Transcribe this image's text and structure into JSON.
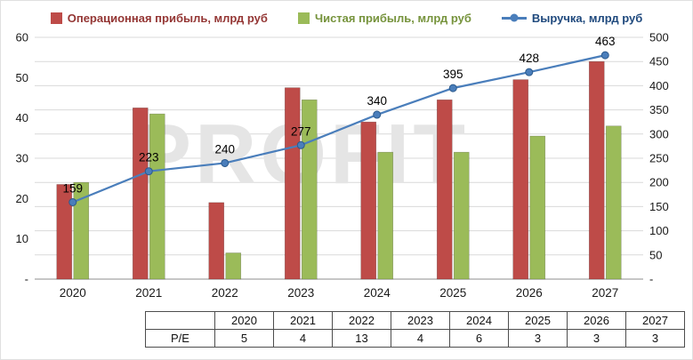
{
  "legend": {
    "items": [
      {
        "label": "Операционная прибыль, млрд руб",
        "color": "#BE4B48",
        "text_color": "#943634",
        "marker": "square"
      },
      {
        "label": "Чистая прибыль, млрд руб",
        "color": "#9BBB59",
        "text_color": "#76933C",
        "marker": "square"
      },
      {
        "label": "Выручка, млрд руб",
        "color": "#4A7EBB",
        "text_color": "#1F497D",
        "marker": "line-dot"
      }
    ]
  },
  "chart_data": {
    "type": "bar+line",
    "categories": [
      "2020",
      "2021",
      "2022",
      "2023",
      "2024",
      "2025",
      "2026",
      "2027"
    ],
    "series": [
      {
        "name": "Операционная прибыль, млрд руб",
        "type": "bar",
        "axis": "left",
        "color": "#BE4B48",
        "values": [
          23.5,
          42.5,
          19,
          47.5,
          39,
          44.5,
          49.5,
          54
        ]
      },
      {
        "name": "Чистая прибыль, млрд руб",
        "type": "bar",
        "axis": "left",
        "color": "#9BBB59",
        "values": [
          24,
          41,
          6.5,
          44.5,
          31.5,
          31.5,
          35.5,
          38
        ]
      },
      {
        "name": "Выручка, млрд руб",
        "type": "line",
        "axis": "right",
        "color": "#4A7EBB",
        "values": [
          159,
          223,
          240,
          277,
          340,
          395,
          428,
          463
        ],
        "point_labels": [
          "159",
          "223",
          "240",
          "277",
          "340",
          "395",
          "428",
          "463"
        ]
      }
    ],
    "left_axis": {
      "min": 0,
      "max": 60,
      "step": 10,
      "tick_labels": [
        "-",
        "10",
        "20",
        "30",
        "40",
        "50",
        "60"
      ]
    },
    "right_axis": {
      "min": 0,
      "max": 500,
      "step": 50,
      "tick_labels": [
        "-",
        "50",
        "100",
        "150",
        "200",
        "250",
        "300",
        "350",
        "400",
        "450",
        "500"
      ]
    },
    "grid": "horizontal",
    "legend_position": "top",
    "watermark": "PROFIT"
  },
  "table": {
    "corner_label": "",
    "columns": [
      "2020",
      "2021",
      "2022",
      "2023",
      "2024",
      "2025",
      "2026",
      "2027"
    ],
    "rows": [
      {
        "label": "P/E",
        "values": [
          "5",
          "4",
          "13",
          "4",
          "6",
          "3",
          "3",
          "3"
        ]
      }
    ]
  }
}
